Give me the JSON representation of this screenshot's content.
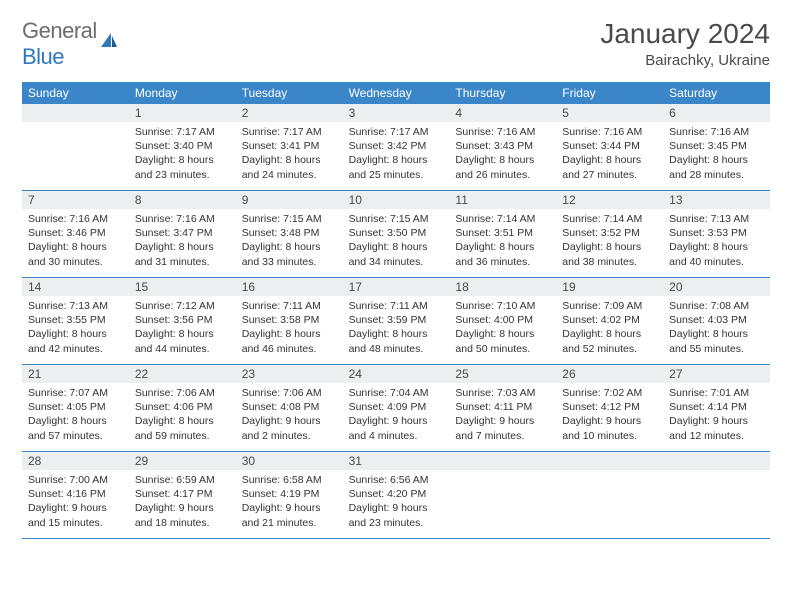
{
  "logo": {
    "text_a": "General",
    "text_b": "Blue"
  },
  "title": "January 2024",
  "location": "Bairachky, Ukraine",
  "colors": {
    "header_bg": "#3b86c8",
    "header_text": "#ffffff",
    "daynum_bg": "#eceeef",
    "border": "#3b86c8",
    "text": "#333333",
    "title_text": "#4a4a4a",
    "logo_gray": "#6d6d6d",
    "logo_blue": "#2f78bf"
  },
  "days_of_week": [
    "Sunday",
    "Monday",
    "Tuesday",
    "Wednesday",
    "Thursday",
    "Friday",
    "Saturday"
  ],
  "weeks": [
    [
      null,
      {
        "n": "1",
        "sr": "7:17 AM",
        "ss": "3:40 PM",
        "dl": "8 hours and 23 minutes."
      },
      {
        "n": "2",
        "sr": "7:17 AM",
        "ss": "3:41 PM",
        "dl": "8 hours and 24 minutes."
      },
      {
        "n": "3",
        "sr": "7:17 AM",
        "ss": "3:42 PM",
        "dl": "8 hours and 25 minutes."
      },
      {
        "n": "4",
        "sr": "7:16 AM",
        "ss": "3:43 PM",
        "dl": "8 hours and 26 minutes."
      },
      {
        "n": "5",
        "sr": "7:16 AM",
        "ss": "3:44 PM",
        "dl": "8 hours and 27 minutes."
      },
      {
        "n": "6",
        "sr": "7:16 AM",
        "ss": "3:45 PM",
        "dl": "8 hours and 28 minutes."
      }
    ],
    [
      {
        "n": "7",
        "sr": "7:16 AM",
        "ss": "3:46 PM",
        "dl": "8 hours and 30 minutes."
      },
      {
        "n": "8",
        "sr": "7:16 AM",
        "ss": "3:47 PM",
        "dl": "8 hours and 31 minutes."
      },
      {
        "n": "9",
        "sr": "7:15 AM",
        "ss": "3:48 PM",
        "dl": "8 hours and 33 minutes."
      },
      {
        "n": "10",
        "sr": "7:15 AM",
        "ss": "3:50 PM",
        "dl": "8 hours and 34 minutes."
      },
      {
        "n": "11",
        "sr": "7:14 AM",
        "ss": "3:51 PM",
        "dl": "8 hours and 36 minutes."
      },
      {
        "n": "12",
        "sr": "7:14 AM",
        "ss": "3:52 PM",
        "dl": "8 hours and 38 minutes."
      },
      {
        "n": "13",
        "sr": "7:13 AM",
        "ss": "3:53 PM",
        "dl": "8 hours and 40 minutes."
      }
    ],
    [
      {
        "n": "14",
        "sr": "7:13 AM",
        "ss": "3:55 PM",
        "dl": "8 hours and 42 minutes."
      },
      {
        "n": "15",
        "sr": "7:12 AM",
        "ss": "3:56 PM",
        "dl": "8 hours and 44 minutes."
      },
      {
        "n": "16",
        "sr": "7:11 AM",
        "ss": "3:58 PM",
        "dl": "8 hours and 46 minutes."
      },
      {
        "n": "17",
        "sr": "7:11 AM",
        "ss": "3:59 PM",
        "dl": "8 hours and 48 minutes."
      },
      {
        "n": "18",
        "sr": "7:10 AM",
        "ss": "4:00 PM",
        "dl": "8 hours and 50 minutes."
      },
      {
        "n": "19",
        "sr": "7:09 AM",
        "ss": "4:02 PM",
        "dl": "8 hours and 52 minutes."
      },
      {
        "n": "20",
        "sr": "7:08 AM",
        "ss": "4:03 PM",
        "dl": "8 hours and 55 minutes."
      }
    ],
    [
      {
        "n": "21",
        "sr": "7:07 AM",
        "ss": "4:05 PM",
        "dl": "8 hours and 57 minutes."
      },
      {
        "n": "22",
        "sr": "7:06 AM",
        "ss": "4:06 PM",
        "dl": "8 hours and 59 minutes."
      },
      {
        "n": "23",
        "sr": "7:06 AM",
        "ss": "4:08 PM",
        "dl": "9 hours and 2 minutes."
      },
      {
        "n": "24",
        "sr": "7:04 AM",
        "ss": "4:09 PM",
        "dl": "9 hours and 4 minutes."
      },
      {
        "n": "25",
        "sr": "7:03 AM",
        "ss": "4:11 PM",
        "dl": "9 hours and 7 minutes."
      },
      {
        "n": "26",
        "sr": "7:02 AM",
        "ss": "4:12 PM",
        "dl": "9 hours and 10 minutes."
      },
      {
        "n": "27",
        "sr": "7:01 AM",
        "ss": "4:14 PM",
        "dl": "9 hours and 12 minutes."
      }
    ],
    [
      {
        "n": "28",
        "sr": "7:00 AM",
        "ss": "4:16 PM",
        "dl": "9 hours and 15 minutes."
      },
      {
        "n": "29",
        "sr": "6:59 AM",
        "ss": "4:17 PM",
        "dl": "9 hours and 18 minutes."
      },
      {
        "n": "30",
        "sr": "6:58 AM",
        "ss": "4:19 PM",
        "dl": "9 hours and 21 minutes."
      },
      {
        "n": "31",
        "sr": "6:56 AM",
        "ss": "4:20 PM",
        "dl": "9 hours and 23 minutes."
      },
      null,
      null,
      null
    ]
  ],
  "labels": {
    "sunrise": "Sunrise: ",
    "sunset": "Sunset: ",
    "daylight": "Daylight: "
  }
}
